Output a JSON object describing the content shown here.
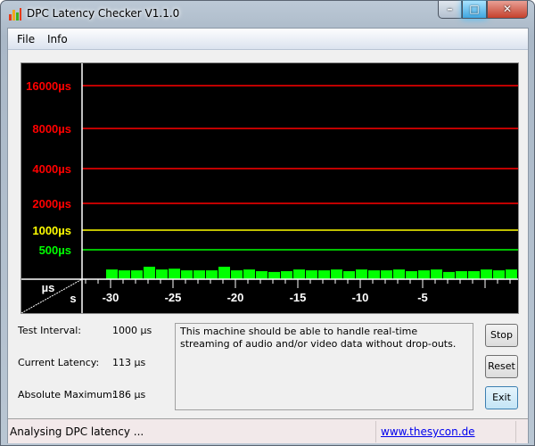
{
  "window": {
    "title": "DPC Latency Checker V1.1.0",
    "icon": "bar-chart-icon",
    "controls": [
      "minimize",
      "maximize",
      "close"
    ]
  },
  "menu": {
    "items": [
      "File",
      "Info"
    ]
  },
  "chart_data": {
    "type": "bar",
    "ylabel": "µs",
    "xlabel": "s",
    "y_scale": "log",
    "y_levels": [
      {
        "value": 16000,
        "label": "16000µs",
        "color": "#ff0000"
      },
      {
        "value": 8000,
        "label": "8000µs",
        "color": "#ff0000"
      },
      {
        "value": 4000,
        "label": "4000µs",
        "color": "#ff0000"
      },
      {
        "value": 2000,
        "label": "2000µs",
        "color": "#ff0000"
      },
      {
        "value": 1000,
        "label": "1000µs",
        "color": "#ffff00"
      },
      {
        "value": 500,
        "label": "500µs",
        "color": "#00ff00"
      }
    ],
    "x_ticks": [
      -30,
      -25,
      -20,
      -15,
      -10,
      -5
    ],
    "x_tick_labels": [
      "-30",
      "-25",
      "-20",
      "-15",
      "-10",
      "-5"
    ],
    "bar_color": "#00ff00",
    "values": [
      145,
      132,
      132,
      186,
      145,
      157,
      132,
      132,
      132,
      186,
      132,
      145,
      120,
      108,
      120,
      145,
      132,
      132,
      145,
      120,
      145,
      132,
      132,
      145,
      120,
      132,
      145,
      108,
      120,
      120,
      145,
      132,
      145
    ]
  },
  "stats": {
    "test_interval_label": "Test Interval:",
    "test_interval": "1000 µs",
    "current_latency_label": "Current Latency:",
    "current_latency": "113 µs",
    "absolute_max_label": "Absolute Maximum:",
    "absolute_max": "186 µs"
  },
  "message": "This machine should be able to handle real-time streaming of audio and/or video data without drop-outs.",
  "buttons": {
    "stop": "Stop",
    "reset": "Reset",
    "exit": "Exit"
  },
  "status": {
    "text": "Analysing DPC latency ...",
    "link": "www.thesycon.de"
  }
}
